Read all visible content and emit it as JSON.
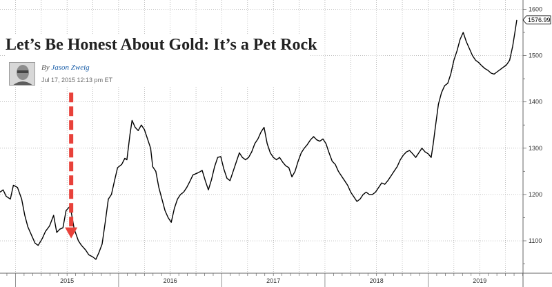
{
  "article": {
    "headline": "Let’s Be Honest About Gold: It’s a Pet Rock",
    "byline_prefix": "By",
    "author": "Jason Zweig",
    "timestamp": "Jul 17, 2015 12:13 pm ET"
  },
  "colors": {
    "line": "#000000",
    "grid": "#9a9a9a",
    "arrow": "#e8413a",
    "background": "#ffffff"
  },
  "icons": [
    "author-photo-icon",
    "down-arrow-icon"
  ],
  "chart_data": {
    "type": "line",
    "title": "",
    "xlabel": "",
    "ylabel": "",
    "ylim": [
      1030,
      1620
    ],
    "xlim": [
      2014.85,
      2019.92
    ],
    "y_ticks": [
      1100,
      1200,
      1300,
      1400,
      1500,
      1600
    ],
    "x_ticks": [
      {
        "label": "2015",
        "x": 2015.0
      },
      {
        "label": "2016",
        "x": 2016.0
      },
      {
        "label": "2017",
        "x": 2017.0
      },
      {
        "label": "2018",
        "x": 2018.0
      },
      {
        "label": "2019",
        "x": 2019.0
      }
    ],
    "grid": true,
    "y_axis_side": "right",
    "last_value_label": "1576.99",
    "annotation": {
      "type": "arrow",
      "x": 2015.54,
      "from_y": 1420,
      "to_y": 1105
    },
    "series": [
      {
        "values": [
          [
            2014.85,
            1205
          ],
          [
            2014.88,
            1210
          ],
          [
            2014.91,
            1196
          ],
          [
            2014.95,
            1190
          ],
          [
            2014.98,
            1220
          ],
          [
            2015.02,
            1215
          ],
          [
            2015.06,
            1190
          ],
          [
            2015.09,
            1155
          ],
          [
            2015.12,
            1130
          ],
          [
            2015.16,
            1110
          ],
          [
            2015.19,
            1095
          ],
          [
            2015.22,
            1090
          ],
          [
            2015.26,
            1105
          ],
          [
            2015.29,
            1120
          ],
          [
            2015.33,
            1132
          ],
          [
            2015.37,
            1155
          ],
          [
            2015.4,
            1118
          ],
          [
            2015.43,
            1125
          ],
          [
            2015.46,
            1128
          ],
          [
            2015.49,
            1165
          ],
          [
            2015.53,
            1175
          ],
          [
            2015.57,
            1125
          ],
          [
            2015.61,
            1100
          ],
          [
            2015.64,
            1090
          ],
          [
            2015.68,
            1080
          ],
          [
            2015.71,
            1070
          ],
          [
            2015.75,
            1065
          ],
          [
            2015.78,
            1060
          ],
          [
            2015.81,
            1075
          ],
          [
            2015.84,
            1093
          ],
          [
            2015.87,
            1140
          ],
          [
            2015.9,
            1190
          ],
          [
            2015.93,
            1200
          ],
          [
            2015.96,
            1230
          ],
          [
            2015.99,
            1258
          ],
          [
            2016.03,
            1265
          ],
          [
            2016.06,
            1278
          ],
          [
            2016.08,
            1275
          ],
          [
            2016.11,
            1330
          ],
          [
            2016.13,
            1360
          ],
          [
            2016.16,
            1345
          ],
          [
            2016.19,
            1338
          ],
          [
            2016.22,
            1350
          ],
          [
            2016.25,
            1340
          ],
          [
            2016.28,
            1320
          ],
          [
            2016.31,
            1300
          ],
          [
            2016.33,
            1260
          ],
          [
            2016.36,
            1250
          ],
          [
            2016.39,
            1215
          ],
          [
            2016.42,
            1190
          ],
          [
            2016.45,
            1165
          ],
          [
            2016.48,
            1150
          ],
          [
            2016.51,
            1140
          ],
          [
            2016.54,
            1170
          ],
          [
            2016.57,
            1190
          ],
          [
            2016.6,
            1200
          ],
          [
            2016.63,
            1205
          ],
          [
            2016.66,
            1215
          ],
          [
            2016.69,
            1228
          ],
          [
            2016.72,
            1242
          ],
          [
            2016.75,
            1245
          ],
          [
            2016.78,
            1248
          ],
          [
            2016.81,
            1252
          ],
          [
            2016.84,
            1230
          ],
          [
            2016.87,
            1210
          ],
          [
            2016.9,
            1232
          ],
          [
            2016.93,
            1260
          ],
          [
            2016.96,
            1280
          ],
          [
            2016.99,
            1282
          ],
          [
            2017.02,
            1255
          ],
          [
            2017.05,
            1235
          ],
          [
            2017.08,
            1230
          ],
          [
            2017.11,
            1250
          ],
          [
            2017.14,
            1270
          ],
          [
            2017.17,
            1290
          ],
          [
            2017.2,
            1280
          ],
          [
            2017.23,
            1275
          ],
          [
            2017.26,
            1280
          ],
          [
            2017.29,
            1292
          ],
          [
            2017.32,
            1310
          ],
          [
            2017.35,
            1320
          ],
          [
            2017.38,
            1335
          ],
          [
            2017.41,
            1345
          ],
          [
            2017.44,
            1310
          ],
          [
            2017.47,
            1290
          ],
          [
            2017.5,
            1280
          ],
          [
            2017.53,
            1275
          ],
          [
            2017.56,
            1280
          ],
          [
            2017.59,
            1270
          ],
          [
            2017.62,
            1262
          ],
          [
            2017.65,
            1258
          ],
          [
            2017.68,
            1238
          ],
          [
            2017.71,
            1250
          ],
          [
            2017.74,
            1272
          ],
          [
            2017.77,
            1290
          ],
          [
            2017.8,
            1300
          ],
          [
            2017.83,
            1308
          ],
          [
            2017.86,
            1318
          ],
          [
            2017.89,
            1325
          ],
          [
            2017.92,
            1318
          ],
          [
            2017.95,
            1315
          ],
          [
            2017.98,
            1320
          ],
          [
            2018.01,
            1310
          ],
          [
            2018.04,
            1290
          ],
          [
            2018.07,
            1272
          ],
          [
            2018.1,
            1265
          ],
          [
            2018.13,
            1250
          ],
          [
            2018.16,
            1240
          ],
          [
            2018.19,
            1230
          ],
          [
            2018.22,
            1220
          ],
          [
            2018.25,
            1205
          ],
          [
            2018.28,
            1195
          ],
          [
            2018.31,
            1185
          ],
          [
            2018.34,
            1190
          ],
          [
            2018.37,
            1200
          ],
          [
            2018.4,
            1205
          ],
          [
            2018.43,
            1200
          ],
          [
            2018.46,
            1200
          ],
          [
            2018.49,
            1205
          ],
          [
            2018.52,
            1215
          ],
          [
            2018.55,
            1225
          ],
          [
            2018.58,
            1222
          ],
          [
            2018.61,
            1230
          ],
          [
            2018.64,
            1240
          ],
          [
            2018.67,
            1250
          ],
          [
            2018.7,
            1260
          ],
          [
            2018.73,
            1275
          ],
          [
            2018.76,
            1285
          ],
          [
            2018.79,
            1292
          ],
          [
            2018.82,
            1295
          ],
          [
            2018.85,
            1288
          ],
          [
            2018.88,
            1280
          ],
          [
            2018.91,
            1290
          ],
          [
            2018.94,
            1300
          ],
          [
            2018.97,
            1292
          ],
          [
            2019.0,
            1288
          ],
          [
            2019.03,
            1280
          ],
          [
            2019.05,
            1310
          ],
          [
            2019.07,
            1345
          ],
          [
            2019.1,
            1395
          ],
          [
            2019.13,
            1420
          ],
          [
            2019.16,
            1435
          ],
          [
            2019.19,
            1440
          ],
          [
            2019.22,
            1460
          ],
          [
            2019.25,
            1490
          ],
          [
            2019.28,
            1510
          ],
          [
            2019.31,
            1535
          ],
          [
            2019.34,
            1550
          ],
          [
            2019.37,
            1530
          ],
          [
            2019.4,
            1515
          ],
          [
            2019.43,
            1500
          ],
          [
            2019.46,
            1490
          ],
          [
            2019.49,
            1485
          ],
          [
            2019.52,
            1478
          ],
          [
            2019.55,
            1472
          ],
          [
            2019.58,
            1468
          ],
          [
            2019.61,
            1462
          ],
          [
            2019.64,
            1460
          ],
          [
            2019.67,
            1465
          ],
          [
            2019.7,
            1470
          ],
          [
            2019.73,
            1475
          ],
          [
            2019.76,
            1480
          ],
          [
            2019.79,
            1490
          ],
          [
            2019.82,
            1520
          ],
          [
            2019.84,
            1548
          ],
          [
            2019.86,
            1577
          ]
        ]
      }
    ]
  }
}
